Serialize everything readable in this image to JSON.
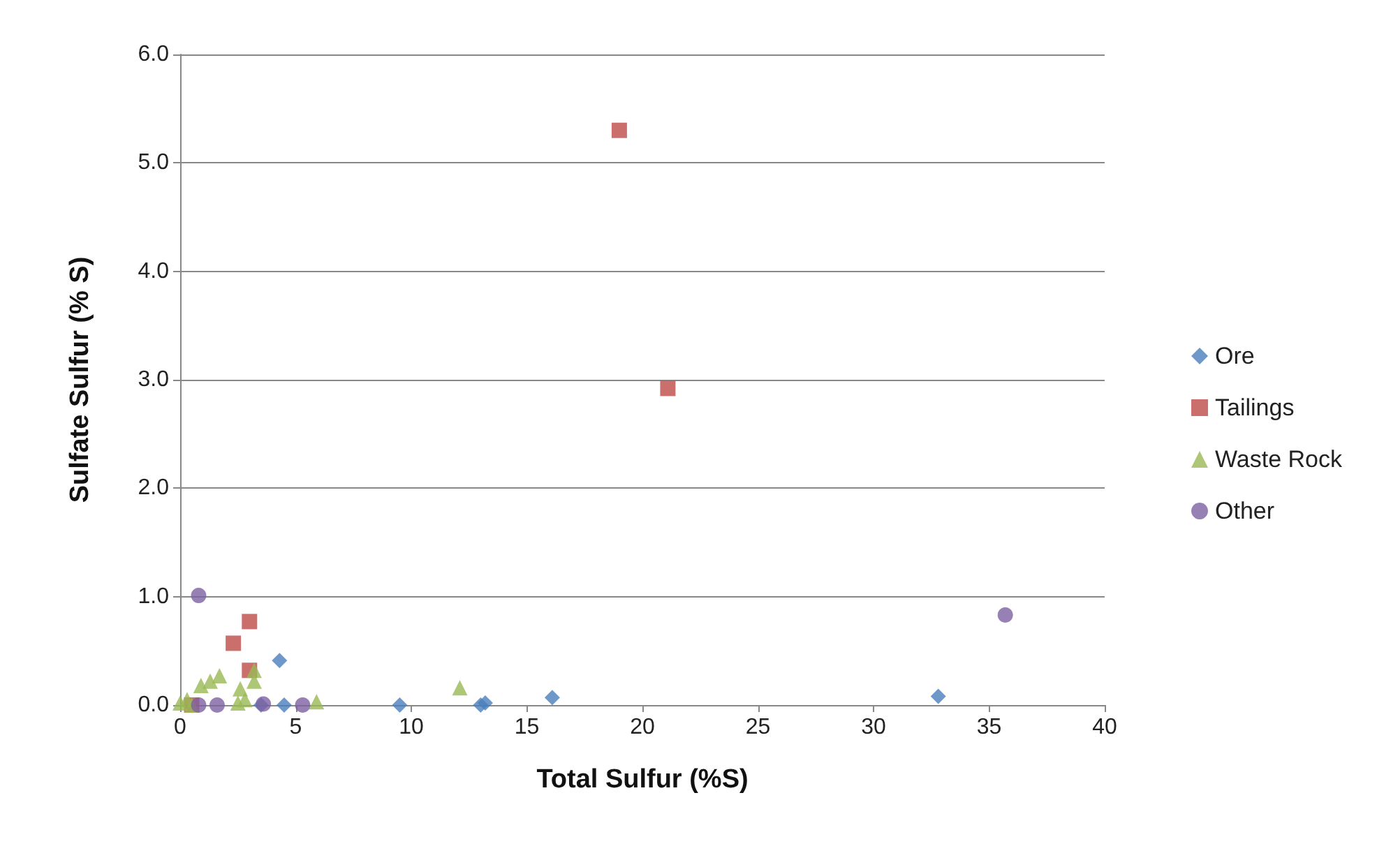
{
  "chart_data": {
    "type": "scatter",
    "xlabel": "Total Sulfur (%S)",
    "ylabel": "Sulfate Sulfur (% S)",
    "xlim": [
      0,
      40
    ],
    "xticks": [
      0,
      5,
      10,
      15,
      20,
      25,
      30,
      35,
      40
    ],
    "ylim": [
      0,
      6
    ],
    "yticks": [
      {
        "value": 0,
        "label": "0.0"
      },
      {
        "value": 1,
        "label": "1.0"
      },
      {
        "value": 2,
        "label": "2.0"
      },
      {
        "value": 3,
        "label": "3.0"
      },
      {
        "value": 4,
        "label": "4.0"
      },
      {
        "value": 5,
        "label": "5.0"
      },
      {
        "value": 6,
        "label": "6.0"
      }
    ],
    "grid": "y",
    "legend": "right",
    "series": [
      {
        "name": "Ore",
        "color": "#4a7ebb",
        "marker": "diamond",
        "x": [
          3.5,
          4.3,
          4.5,
          9.5,
          13,
          13.2,
          16.1,
          32.8
        ],
        "values": [
          0,
          0.41,
          0,
          0,
          0,
          0.02,
          0.07,
          0.08
        ]
      },
      {
        "name": "Tailings",
        "color": "#be4b48",
        "marker": "square",
        "x": [
          19,
          21.1,
          3,
          2.3,
          3,
          0.5
        ],
        "values": [
          5.3,
          2.92,
          0.77,
          0.57,
          0.32,
          0
        ]
      },
      {
        "name": "Waste Rock",
        "color": "#98b954",
        "marker": "triangle",
        "x": [
          0,
          0.3,
          0.5,
          0.9,
          1.3,
          1.7,
          2.5,
          2.6,
          2.8,
          3.2,
          3.2,
          5.9,
          12.1
        ],
        "values": [
          0.02,
          0.05,
          0,
          0.18,
          0.22,
          0.27,
          0.02,
          0.15,
          0.05,
          0.32,
          0.22,
          0.03,
          0.16
        ]
      },
      {
        "name": "Other",
        "color": "#7d60a0",
        "marker": "circle",
        "x": [
          0.8,
          0.8,
          1.6,
          3.6,
          5.3,
          35.7
        ],
        "values": [
          1.01,
          0,
          0,
          0.01,
          0,
          0.83
        ]
      }
    ]
  }
}
